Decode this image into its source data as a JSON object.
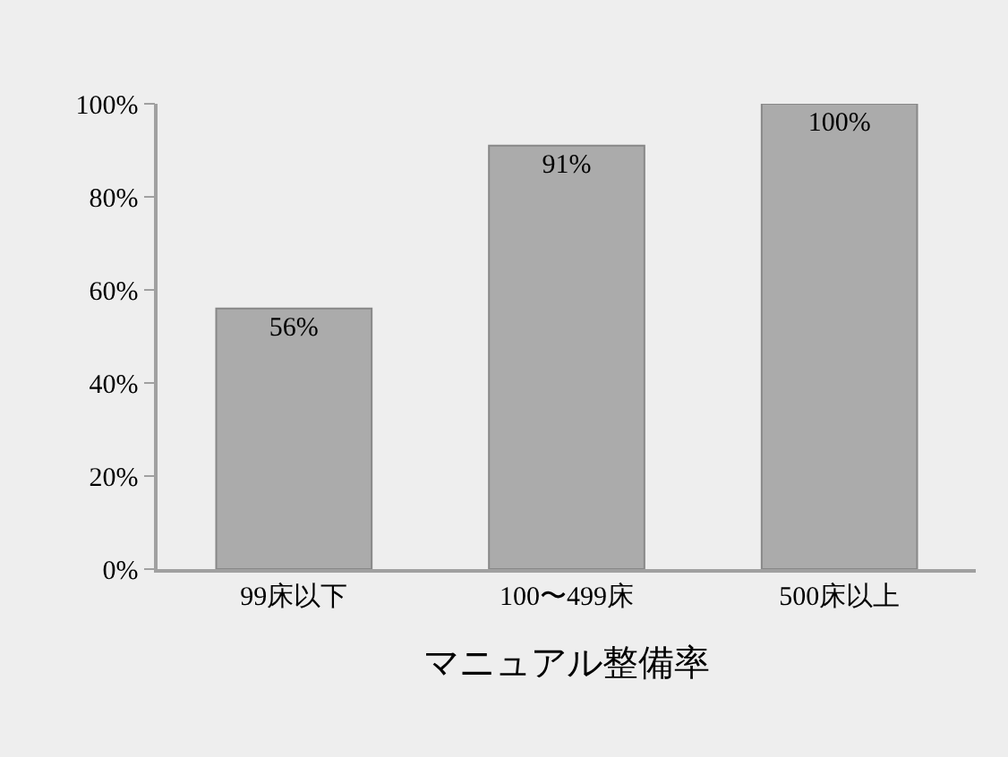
{
  "chart_data": {
    "type": "bar",
    "xlabel": "マニュアル整備率",
    "categories": [
      "99床以下",
      "100〜499床",
      "500床以上"
    ],
    "values": [
      56,
      91,
      100
    ],
    "value_labels": [
      "56%",
      "91%",
      "100%"
    ],
    "color": "#ababab",
    "ylim": [
      0,
      100
    ],
    "yticks": [
      {
        "value": 0,
        "label": "0%"
      },
      {
        "value": 20,
        "label": "20%"
      },
      {
        "value": 40,
        "label": "40%"
      },
      {
        "value": 60,
        "label": "60%"
      },
      {
        "value": 80,
        "label": "80%"
      },
      {
        "value": 100,
        "label": "100%"
      }
    ],
    "grid": false,
    "legend": false
  }
}
